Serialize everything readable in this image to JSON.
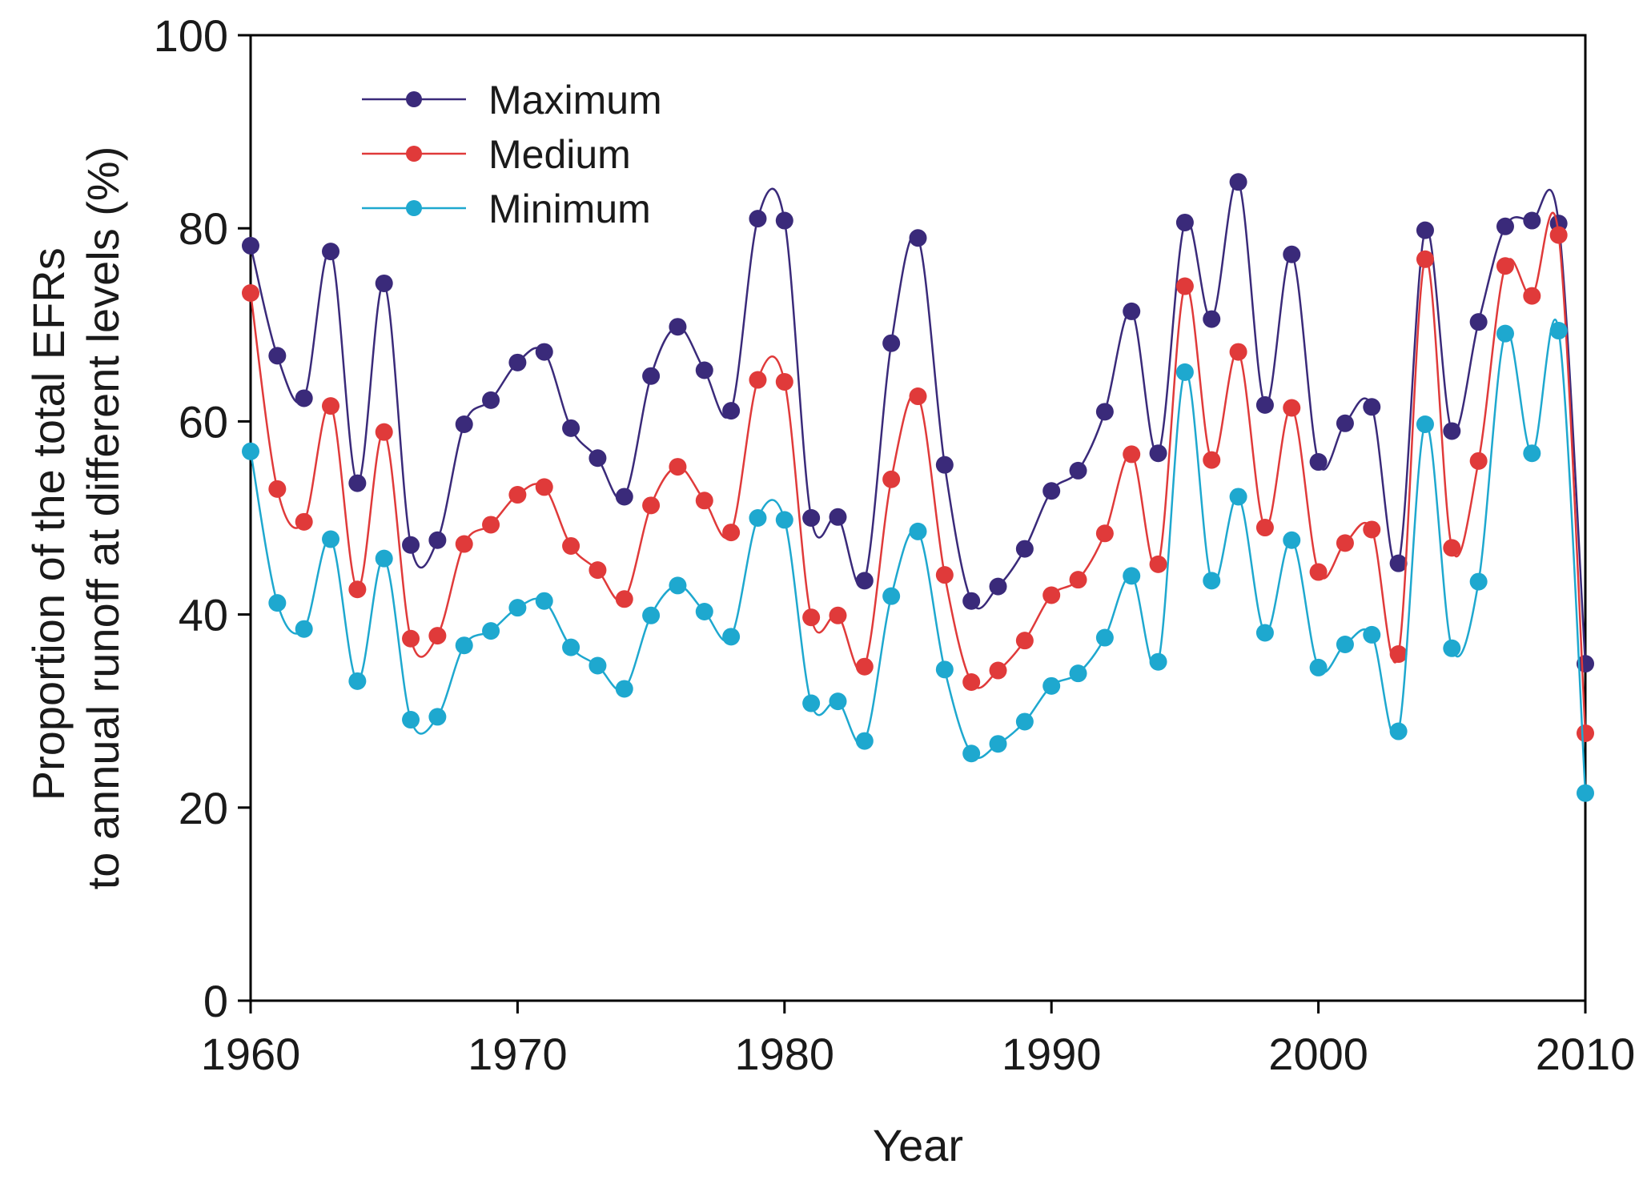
{
  "chart_data": {
    "type": "line",
    "xlabel": "Year",
    "ylabel_lines": [
      "Proportion of the total EFRs",
      "to annual runoff at different levels (%)"
    ],
    "xlim": [
      1960,
      2010
    ],
    "ylim": [
      0,
      100
    ],
    "xticks": [
      1960,
      1970,
      1980,
      1990,
      2000,
      2010
    ],
    "yticks": [
      0,
      20,
      40,
      60,
      80,
      100
    ],
    "grid": false,
    "legend_position": "top-left",
    "x": [
      1960,
      1961,
      1962,
      1963,
      1964,
      1965,
      1966,
      1967,
      1968,
      1969,
      1970,
      1971,
      1972,
      1973,
      1974,
      1975,
      1976,
      1977,
      1978,
      1979,
      1980,
      1981,
      1982,
      1983,
      1984,
      1985,
      1986,
      1987,
      1988,
      1989,
      1990,
      1991,
      1992,
      1993,
      1994,
      1995,
      1996,
      1997,
      1998,
      1999,
      2000,
      2001,
      2002,
      2003,
      2004,
      2005,
      2006,
      2007,
      2008,
      2009,
      2010
    ],
    "series": [
      {
        "name": "Maximum",
        "color": "#3a2a7a",
        "values": [
          78.2,
          66.8,
          62.4,
          77.6,
          53.6,
          74.3,
          47.2,
          47.7,
          59.7,
          62.2,
          66.1,
          67.2,
          59.3,
          56.2,
          52.2,
          64.7,
          69.8,
          65.3,
          61.1,
          81.0,
          80.8,
          50.0,
          50.1,
          43.5,
          68.1,
          79.0,
          55.5,
          41.4,
          42.9,
          46.8,
          52.8,
          54.9,
          61.0,
          71.4,
          56.7,
          80.6,
          70.6,
          84.8,
          61.7,
          77.3,
          55.8,
          59.8,
          61.5,
          45.3,
          79.8,
          59.0,
          70.3,
          80.2,
          80.8,
          80.5,
          34.9
        ]
      },
      {
        "name": "Medium",
        "color": "#e03a3a",
        "values": [
          73.3,
          53.0,
          49.6,
          61.6,
          42.6,
          58.9,
          37.5,
          37.8,
          47.3,
          49.3,
          52.4,
          53.2,
          47.1,
          44.6,
          41.6,
          51.3,
          55.3,
          51.8,
          48.5,
          64.3,
          64.1,
          39.7,
          39.9,
          34.6,
          54.0,
          62.6,
          44.1,
          33.0,
          34.2,
          37.3,
          42.0,
          43.6,
          48.4,
          56.6,
          45.2,
          74.0,
          56.0,
          67.2,
          49.0,
          61.4,
          44.4,
          47.4,
          48.8,
          35.9,
          76.8,
          46.9,
          55.9,
          76.1,
          73.0,
          79.3,
          27.7
        ]
      },
      {
        "name": "Minimum",
        "color": "#1ea8cf",
        "values": [
          56.9,
          41.2,
          38.5,
          47.8,
          33.1,
          45.8,
          29.1,
          29.4,
          36.8,
          38.3,
          40.7,
          41.4,
          36.6,
          34.7,
          32.3,
          39.9,
          43.0,
          40.3,
          37.7,
          50.0,
          49.8,
          30.8,
          31.0,
          26.9,
          41.9,
          48.6,
          34.3,
          25.6,
          26.6,
          28.9,
          32.6,
          33.9,
          37.6,
          44.0,
          35.1,
          65.1,
          43.5,
          52.2,
          38.1,
          47.7,
          34.5,
          36.9,
          37.9,
          27.9,
          59.7,
          36.5,
          43.4,
          69.1,
          56.7,
          69.4,
          21.5
        ]
      }
    ]
  }
}
